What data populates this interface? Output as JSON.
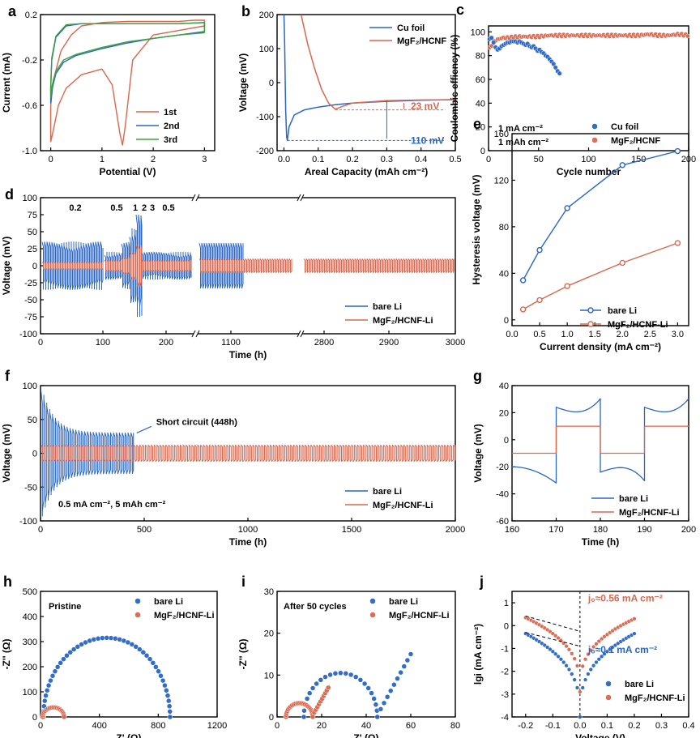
{
  "colors": {
    "blue": "#2a66c4",
    "red": "#d9674e",
    "green": "#3aa23a",
    "axis": "#000000"
  },
  "chart_data": [
    {
      "id": "a",
      "type": "line",
      "panel_letter": "a",
      "xlabel": "Potential (V)",
      "ylabel": "Current (mA)",
      "xlim": [
        -0.2,
        3.2
      ],
      "ylim": [
        -1.0,
        0.2
      ],
      "xticks": [
        0,
        1,
        2,
        3
      ],
      "yticks": [
        -1.0,
        -0.6,
        -0.2,
        0.2
      ],
      "legend": "bottom-right",
      "series": [
        {
          "name": "1st",
          "color": "red",
          "x": [
            3.0,
            2.5,
            2.0,
            1.6,
            1.45,
            1.4,
            1.35,
            1.2,
            1.0,
            0.6,
            0.3,
            0.15,
            0.05,
            0.0,
            0.0,
            0.05,
            0.2,
            0.4,
            0.6,
            1.0,
            1.5,
            2.0,
            2.5,
            2.8,
            3.0,
            3.0
          ],
          "y": [
            0.1,
            0.06,
            0.02,
            -0.2,
            -0.8,
            -0.95,
            -0.85,
            -0.42,
            -0.28,
            -0.33,
            -0.45,
            -0.6,
            -0.82,
            -0.92,
            -0.6,
            -0.38,
            -0.12,
            0.02,
            0.1,
            0.13,
            0.14,
            0.14,
            0.14,
            0.15,
            0.15,
            0.1
          ]
        },
        {
          "name": "2nd",
          "color": "blue",
          "x": [
            3.0,
            2.5,
            2.0,
            1.5,
            1.0,
            0.5,
            0.25,
            0.1,
            0.03,
            0.0,
            0.0,
            0.02,
            0.1,
            0.3,
            0.6,
            1.0,
            1.5,
            2.0,
            2.5,
            3.0,
            3.0
          ],
          "y": [
            0.05,
            0.02,
            -0.01,
            -0.05,
            -0.1,
            -0.16,
            -0.22,
            -0.32,
            -0.45,
            -0.58,
            -0.45,
            -0.2,
            0.0,
            0.1,
            0.12,
            0.12,
            0.12,
            0.12,
            0.12,
            0.13,
            0.05
          ]
        },
        {
          "name": "3rd",
          "color": "green",
          "x": [
            3.0,
            2.5,
            2.0,
            1.5,
            1.0,
            0.5,
            0.25,
            0.1,
            0.03,
            0.0,
            0.0,
            0.02,
            0.1,
            0.3,
            0.6,
            1.0,
            1.5,
            2.0,
            2.5,
            3.0,
            3.0
          ],
          "y": [
            0.04,
            0.02,
            -0.01,
            -0.04,
            -0.09,
            -0.15,
            -0.2,
            -0.3,
            -0.42,
            -0.53,
            -0.42,
            -0.18,
            0.01,
            0.11,
            0.12,
            0.12,
            0.12,
            0.12,
            0.12,
            0.13,
            0.04
          ]
        }
      ]
    },
    {
      "id": "b",
      "type": "line",
      "panel_letter": "b",
      "xlabel": "Areal Capacity (mAh cm⁻²)",
      "ylabel": "Voltage (mV)",
      "xlim": [
        -0.02,
        0.5
      ],
      "ylim": [
        -200,
        200
      ],
      "xticks": [
        0.0,
        0.1,
        0.2,
        0.3,
        0.4,
        0.5
      ],
      "yticks": [
        -200,
        -100,
        0,
        100,
        200
      ],
      "legend": "top-right",
      "series": [
        {
          "name": "Cu foil",
          "color": "blue",
          "x": [
            0.0,
            0.002,
            0.005,
            0.008,
            0.01,
            0.015,
            0.03,
            0.06,
            0.1,
            0.15,
            0.2,
            0.3,
            0.4,
            0.5
          ],
          "y": [
            200,
            120,
            -80,
            -160,
            -170,
            -130,
            -95,
            -80,
            -72,
            -65,
            -60,
            -55,
            -52,
            -50
          ]
        },
        {
          "name": "MgF₂/HCNF",
          "color": "red",
          "x": [
            0.05,
            0.07,
            0.09,
            0.11,
            0.13,
            0.15,
            0.17,
            0.2,
            0.3,
            0.4,
            0.5
          ],
          "y": [
            200,
            110,
            40,
            -20,
            -60,
            -78,
            -70,
            -60,
            -53,
            -51,
            -50
          ]
        }
      ],
      "annotations": [
        "23 mV",
        "110 mV"
      ]
    },
    {
      "id": "c",
      "type": "scatter",
      "panel_letter": "c",
      "xlabel": "Cycle number",
      "ylabel": "Coulombic effiency (%)",
      "xlim": [
        0,
        200
      ],
      "ylim": [
        0,
        105
      ],
      "xticks": [
        0,
        50,
        100,
        150,
        200
      ],
      "yticks": [
        0,
        20,
        40,
        60,
        80,
        100
      ],
      "legend": "bottom-right",
      "notes": [
        "1 mA cm⁻²",
        "1 mAh cm⁻²"
      ],
      "series": [
        {
          "name": "Cu foil",
          "color": "blue",
          "x": [
            1,
            3,
            5,
            7,
            9,
            11,
            13,
            15,
            17,
            19,
            21,
            23,
            25,
            27,
            29,
            31,
            33,
            35,
            37,
            39,
            41,
            43,
            45,
            47,
            49,
            51,
            53,
            55,
            57,
            59,
            61,
            63,
            65,
            67,
            69,
            71
          ],
          "y": [
            94,
            95,
            91,
            87,
            85,
            86,
            88,
            89,
            90,
            91,
            91,
            92,
            92,
            92,
            91,
            92,
            91,
            90,
            89,
            90,
            88,
            87,
            88,
            86,
            84,
            85,
            83,
            82,
            80,
            79,
            77,
            75,
            73,
            70,
            67,
            65
          ]
        },
        {
          "name": "MgF₂/HCNF",
          "color": "red",
          "x": [
            1,
            5,
            10,
            15,
            20,
            30,
            40,
            50,
            60,
            70,
            80,
            90,
            100,
            110,
            120,
            130,
            140,
            150,
            160,
            170,
            180,
            190,
            200
          ],
          "y": [
            86,
            92,
            94,
            95,
            95,
            96,
            96,
            96,
            97,
            97,
            97,
            97,
            97,
            97,
            97,
            97,
            97,
            97,
            98,
            97,
            97,
            98,
            97
          ]
        }
      ]
    },
    {
      "id": "d",
      "type": "line",
      "panel_letter": "d",
      "xlabel": "Time (h)",
      "ylabel": "Voltage (mV)",
      "ylim": [
        -100,
        100
      ],
      "yticks": [
        -100,
        -75,
        -50,
        -25,
        0,
        25,
        50,
        75,
        100
      ],
      "xticks": [
        "0",
        "100",
        "200",
        "1100",
        "2800",
        "2900",
        "3000"
      ],
      "legend": "bottom-right",
      "rate_labels": [
        "0.2",
        "0.5",
        "1",
        "2",
        "3",
        "0.5"
      ],
      "series": [
        {
          "name": "bare Li",
          "color": "blue",
          "amplitudes": [
            35,
            20,
            35,
            55,
            75,
            20,
            35
          ]
        },
        {
          "name": "MgF₂/HCNF-Li",
          "color": "red",
          "amplitudes": [
            5,
            8,
            12,
            20,
            30,
            8,
            10
          ]
        }
      ]
    },
    {
      "id": "e",
      "type": "line",
      "panel_letter": "e",
      "xlabel": "Current density (mA cm⁻²)",
      "ylabel": "Hysteresis voltage (mV)",
      "xlim": [
        0,
        3.2
      ],
      "ylim": [
        -5,
        160
      ],
      "xticks": [
        0.0,
        0.5,
        1.0,
        1.5,
        2.0,
        2.5,
        3.0
      ],
      "yticks": [
        0,
        40,
        80,
        120,
        160
      ],
      "legend": "bottom-right",
      "categories": [
        0.2,
        0.5,
        1.0,
        2.0,
        3.0
      ],
      "series": [
        {
          "name": "bare Li",
          "color": "blue",
          "values": [
            34,
            60,
            96,
            133,
            145
          ]
        },
        {
          "name": "MgF₂/HCNF-Li",
          "color": "red",
          "values": [
            9,
            17,
            29,
            49,
            66
          ]
        }
      ]
    },
    {
      "id": "f",
      "type": "line",
      "panel_letter": "f",
      "xlabel": "Time (h)",
      "ylabel": "Voltage (mV)",
      "xlim": [
        0,
        2000
      ],
      "ylim": [
        -100,
        100
      ],
      "xticks": [
        0,
        500,
        1000,
        1500,
        2000
      ],
      "yticks": [
        -100,
        -50,
        0,
        50,
        100
      ],
      "legend": "bottom-right",
      "annotation": "Short circuit (448h)",
      "condition": "0.5 mA cm⁻², 5 mAh cm⁻²",
      "series": [
        {
          "name": "bare Li",
          "color": "blue",
          "end_time": 448,
          "peak": 95,
          "settle_amplitude": 30
        },
        {
          "name": "MgF₂/HCNF-Li",
          "color": "red",
          "end_time": 2000,
          "amplitude": 12
        }
      ]
    },
    {
      "id": "g",
      "type": "line",
      "panel_letter": "g",
      "xlabel": "Time (h)",
      "ylabel": "Voltage (mV)",
      "xlim": [
        160,
        200
      ],
      "ylim": [
        -60,
        40
      ],
      "xticks": [
        160,
        170,
        180,
        190,
        200
      ],
      "yticks": [
        -60,
        -40,
        -20,
        0,
        20,
        40
      ],
      "legend": "bottom-right",
      "series": [
        {
          "name": "bare Li",
          "color": "blue",
          "switch_times": [
            170,
            180,
            190,
            200
          ],
          "start": 24,
          "end": 30
        },
        {
          "name": "MgF₂/HCNF-Li",
          "color": "red",
          "switch_times": [
            170,
            180,
            190,
            200
          ],
          "level": 10
        }
      ]
    },
    {
      "id": "h",
      "type": "scatter",
      "panel_letter": "h",
      "xlabel": "Z' (Ω)",
      "ylabel": "-Z'' (Ω)",
      "xlim": [
        0,
        1200
      ],
      "ylim": [
        0,
        500
      ],
      "xticks": [
        0,
        400,
        800,
        1200
      ],
      "yticks": [
        0,
        100,
        200,
        300,
        400,
        500
      ],
      "legend": "top-right",
      "note": "Pristine",
      "series": [
        {
          "name": "bare Li",
          "color": "blue",
          "arc_start": 20,
          "arc_end": 880,
          "peak": 315
        },
        {
          "name": "MgF₂/HCNF-Li",
          "color": "red",
          "arc_start": 15,
          "arc_end": 160,
          "peak": 38
        }
      ]
    },
    {
      "id": "i",
      "type": "scatter",
      "panel_letter": "i",
      "xlabel": "Z' (Ω)",
      "ylabel": "-Z'' (Ω)",
      "xlim": [
        0,
        80
      ],
      "ylim": [
        0,
        30
      ],
      "xticks": [
        0,
        20,
        40,
        60,
        80
      ],
      "yticks": [
        0,
        10,
        20,
        30
      ],
      "legend": "top-right",
      "note": "After 50 cycles",
      "series": [
        {
          "name": "bare Li",
          "color": "blue",
          "arc_start": 12,
          "arc_end": 45,
          "peak": 10.5,
          "tail_end": [
            60,
            15
          ]
        },
        {
          "name": "MgF₂/HCNF-Li",
          "color": "red",
          "arc_start": 4,
          "arc_end": 16,
          "peak": 3.3,
          "tail_end": [
            23,
            7
          ]
        }
      ]
    },
    {
      "id": "j",
      "type": "scatter",
      "panel_letter": "j",
      "xlabel": "Voltage (V)",
      "ylabel": "lgi (mA cm⁻²)",
      "xlim": [
        -0.25,
        0.4
      ],
      "ylim": [
        -4,
        1.5
      ],
      "xticks": [
        -0.2,
        -0.1,
        0.0,
        0.1,
        0.2,
        0.3,
        0.4
      ],
      "yticks": [
        -4,
        -3,
        -2,
        -1,
        0,
        1
      ],
      "legend": "bottom-right",
      "annotations": [
        "j₀≈0.56 mA cm⁻²",
        "j₀≈0.1 mA cm⁻²"
      ],
      "series": [
        {
          "name": "bare Li",
          "color": "blue",
          "left_end": -0.35,
          "right_end": -0.35,
          "valley": -4.0
        },
        {
          "name": "MgF₂/HCNF-Li",
          "color": "red",
          "left_end": 0.35,
          "right_end": 0.3,
          "valley": -2.9
        }
      ]
    }
  ]
}
